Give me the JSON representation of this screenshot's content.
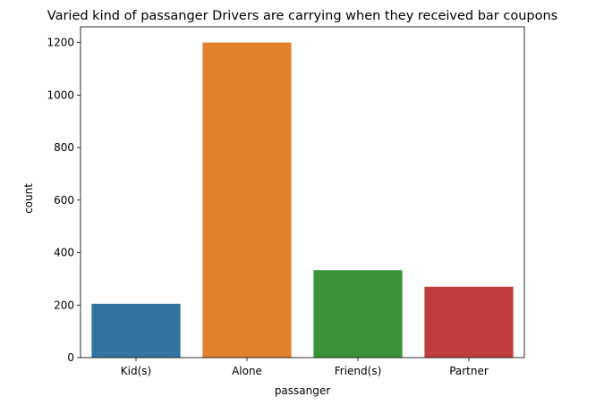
{
  "chart_data": {
    "type": "bar",
    "title": "Varied kind of passanger Drivers are carrying when they received bar coupons",
    "xlabel": "passanger",
    "ylabel": "count",
    "categories": [
      "Kid(s)",
      "Alone",
      "Friend(s)",
      "Partner"
    ],
    "values": [
      205,
      1200,
      333,
      270
    ],
    "colors": [
      "#3274a1",
      "#e1812c",
      "#3a923a",
      "#c03d3e"
    ],
    "ylim": [
      0,
      1260
    ],
    "yticks": [
      0,
      200,
      400,
      600,
      800,
      1000,
      1200
    ],
    "grid": false,
    "legend": "none"
  }
}
